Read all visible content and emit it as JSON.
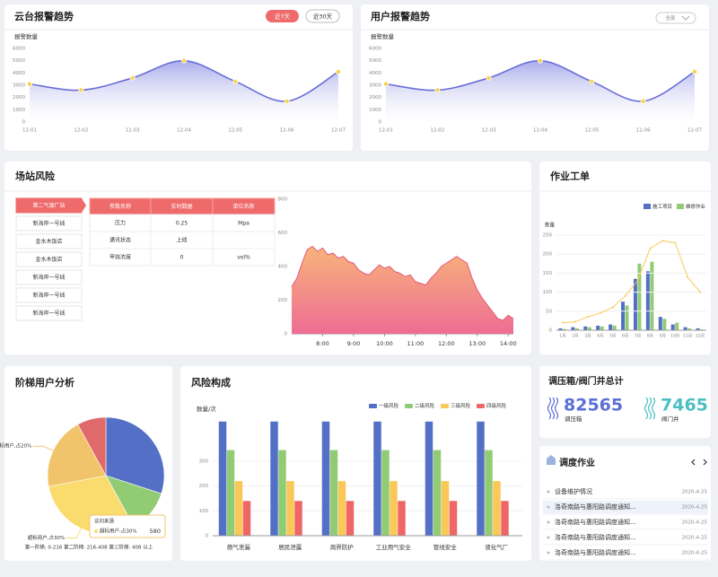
{
  "alarm_ptz": {
    "title": "云台报警趋势",
    "buttons": [
      "近7天",
      "近30天"
    ],
    "chart": {
      "type": "line",
      "ylabel": "报警数量",
      "categories": [
        "12-01",
        "12-02",
        "12-03",
        "12-04",
        "12-05",
        "12-06",
        "12-07"
      ],
      "values": [
        3100,
        2600,
        3600,
        5000,
        3300,
        1700,
        4100
      ],
      "ylim": [
        0,
        6000
      ],
      "yticks": [
        0,
        1000,
        2000,
        3000,
        4000,
        5000,
        6000
      ],
      "color": "#6a6fd8"
    }
  },
  "alarm_user": {
    "title": "用户报警趋势",
    "filter": "全部",
    "chart": {
      "type": "line",
      "ylabel": "报警数量",
      "categories": [
        "12-01",
        "12-02",
        "12-03",
        "12-04",
        "12-05",
        "12-06",
        "12-07"
      ],
      "values": [
        3100,
        2600,
        3600,
        5000,
        3300,
        1700,
        4100
      ],
      "ylim": [
        0,
        6000
      ],
      "yticks": [
        0,
        1000,
        2000,
        3000,
        4000,
        5000,
        6000
      ],
      "color": "#6a6fd8"
    }
  },
  "station": {
    "title": "场站风险",
    "stations": [
      "第二气源厂站",
      "新海岸一号线",
      "金水木饭店",
      "金水木饭店",
      "新海岸一号线",
      "新海岸一号线",
      "新海岸一号线"
    ],
    "selected": 0,
    "table": {
      "header": [
        "参数名称",
        "实时数据",
        "单位名称"
      ],
      "rows": [
        [
          "压力",
          0.25,
          "Mpa"
        ],
        [
          "通讯状态",
          "上线"
        ],
        [
          "甲烷浓度",
          0,
          "vol%"
        ]
      ]
    },
    "chart": {
      "type": "area",
      "x": [
        "7:00",
        "7:10",
        "7:20",
        "7:30",
        "7:40",
        "7:50",
        "8:00",
        "8:10",
        "8:20",
        "8:30",
        "8:40",
        "8:50",
        "9:00",
        "9:10",
        "9:20",
        "9:30",
        "9:40",
        "9:50",
        "10:00",
        "10:10",
        "10:20",
        "10:30",
        "10:40",
        "10:50",
        "11:00",
        "11:10",
        "11:20",
        "11:30",
        "11:40",
        "11:50",
        "12:00",
        "12:10",
        "12:20",
        "12:30",
        "12:40",
        "12:50",
        "13:00",
        "13:10",
        "13:20",
        "13:30",
        "13:40",
        "13:50",
        "14:00",
        "14:10"
      ],
      "values": [
        280,
        330,
        420,
        500,
        520,
        490,
        510,
        470,
        480,
        450,
        460,
        430,
        420,
        380,
        360,
        350,
        380,
        410,
        390,
        400,
        370,
        360,
        340,
        350,
        310,
        300,
        290,
        330,
        360,
        400,
        420,
        440,
        460,
        440,
        420,
        330,
        260,
        210,
        170,
        130,
        90,
        80,
        110,
        90
      ],
      "xlim": [
        "7:00",
        "14:10"
      ],
      "xticks": [
        "8:00",
        "9:00",
        "10:00",
        "11:00",
        "12:00",
        "13:00",
        "14:00"
      ],
      "ylim": [
        0,
        800
      ],
      "yticks": [
        0,
        200,
        400,
        600,
        800
      ],
      "color": "#e6577a"
    }
  },
  "work_orders": {
    "title": "作业工单",
    "chart": {
      "type": "bar",
      "ylabel": "数量",
      "categories": [
        "1月",
        "2月",
        "3月",
        "4月",
        "5月",
        "6月",
        "7月",
        "8月",
        "9月",
        "10月",
        "11月",
        "12月"
      ],
      "series": [
        {
          "name": "施工项目",
          "color": "#5470c6",
          "values": [
            5,
            8,
            10,
            12,
            15,
            75,
            135,
            155,
            35,
            15,
            8,
            5
          ]
        },
        {
          "name": "维修作业",
          "color": "#91cc75",
          "values": [
            3,
            5,
            8,
            10,
            12,
            65,
            175,
            180,
            30,
            20,
            5,
            2
          ]
        }
      ],
      "line": {
        "color": "#fac858",
        "values": [
          20,
          22,
          35,
          45,
          60,
          90,
          130,
          215,
          235,
          230,
          140,
          100
        ]
      },
      "ylim": [
        0,
        250
      ],
      "yticks": [
        0,
        50,
        100,
        150,
        200,
        250
      ]
    }
  },
  "tiers": {
    "title": "阶梯用户分析",
    "chart": {
      "type": "pie",
      "values": [
        30,
        12,
        30,
        20,
        8
      ],
      "colors": [
        "#5470c6",
        "#91cc75",
        "#fadb6e",
        "#f1c46c",
        "#e06a6a"
      ],
      "value_labels": [
        null,
        null,
        "超标用户,占30%",
        "未超标用户,占20%",
        null
      ]
    },
    "tooltip": {
      "title": "访问来源",
      "label": "超标用户:占30%",
      "value": 580
    },
    "footer": "第一阶梯: 0-216 第二阶梯: 216-408 第三阶梯: 408 以上"
  },
  "risk": {
    "title": "风险构成",
    "chart": {
      "type": "bar",
      "ylabel": "数量/次",
      "categories": [
        "燃气泄漏",
        "居民泄露",
        "周界防护",
        "工业用气安全",
        "管线安全",
        "液化气厂"
      ],
      "series": [
        {
          "name": "一级风险",
          "color": "#5470c6",
          "values": [
            460,
            460,
            460,
            460,
            460,
            460
          ]
        },
        {
          "name": "二级风险",
          "color": "#91cc75",
          "values": [
            345,
            345,
            345,
            345,
            345,
            345
          ]
        },
        {
          "name": "三级风险",
          "color": "#fac858",
          "values": [
            220,
            220,
            220,
            220,
            220,
            220
          ]
        },
        {
          "name": "四级风险",
          "color": "#ee6666",
          "values": [
            140,
            140,
            140,
            140,
            140,
            140
          ]
        }
      ],
      "ylim": [
        0,
        470
      ],
      "yticks": [
        0,
        100,
        200,
        300
      ]
    }
  },
  "totals": {
    "title": "调压箱/阀门井总计",
    "items": [
      {
        "value": 82565,
        "label": "调压箱",
        "color": "#5b6fd6"
      },
      {
        "value": 7465,
        "label": "阀门井",
        "color": "#4bbfc2"
      }
    ]
  },
  "dispatch": {
    "title": "调度作业",
    "highlighted": 1,
    "items": [
      {
        "text": "设备维护情况",
        "date": "2020-4-25"
      },
      {
        "text": "洛奇南路与惠阳路调度通知...",
        "date": "2020-4-25"
      },
      {
        "text": "洛奇南路与惠阳路调度通知...",
        "date": "2020-4-25"
      },
      {
        "text": "洛奇南路与惠阳路调度通知...",
        "date": "2020-4-25"
      },
      {
        "text": "洛奇南路与惠阳路调度通知...",
        "date": "2020-4-25"
      }
    ]
  }
}
